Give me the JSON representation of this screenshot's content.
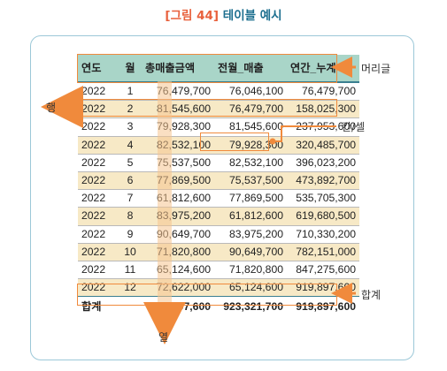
{
  "figure": {
    "tag": "[그림 44]",
    "name": "테이블 예시"
  },
  "table": {
    "headers": [
      "연도",
      "월",
      "총매출금액",
      "전월_매출",
      "연간_누계"
    ],
    "rows": [
      [
        "2022",
        "1",
        "76,479,700",
        "76,046,100",
        "76,479,700"
      ],
      [
        "2022",
        "2",
        "81,545,600",
        "76,479,700",
        "158,025,300"
      ],
      [
        "2022",
        "3",
        "79,928,300",
        "81,545,600",
        "237,953,600"
      ],
      [
        "2022",
        "4",
        "82,532,100",
        "79,928,300",
        "320,485,700"
      ],
      [
        "2022",
        "5",
        "75,537,500",
        "82,532,100",
        "396,023,200"
      ],
      [
        "2022",
        "6",
        "77,869,500",
        "75,537,500",
        "473,892,700"
      ],
      [
        "2022",
        "7",
        "61,812,600",
        "77,869,500",
        "535,705,300"
      ],
      [
        "2022",
        "8",
        "83,975,200",
        "61,812,600",
        "619,680,500"
      ],
      [
        "2022",
        "9",
        "90,649,700",
        "83,975,200",
        "710,330,200"
      ],
      [
        "2022",
        "10",
        "71,820,800",
        "90,649,700",
        "782,151,000"
      ],
      [
        "2022",
        "11",
        "65,124,600",
        "71,820,800",
        "847,275,600"
      ],
      [
        "2022",
        "12",
        "72,622,000",
        "65,124,600",
        "919,897,600"
      ]
    ],
    "total": {
      "label": "합계",
      "sales": "919,897,600",
      "prev": "923,321,700",
      "cum": "919,897,600"
    }
  },
  "annotations": {
    "header": "머리글",
    "row": "행",
    "cell": "칸/셀",
    "total": "합계",
    "column": "열"
  },
  "colors": {
    "accent": "#f08a3c",
    "header_bg": "#a9d5c8",
    "stripe": "#f7e9c6",
    "frame": "#9cc8d8",
    "title_tag": "#e8603c",
    "title_name": "#1d6f8f"
  }
}
